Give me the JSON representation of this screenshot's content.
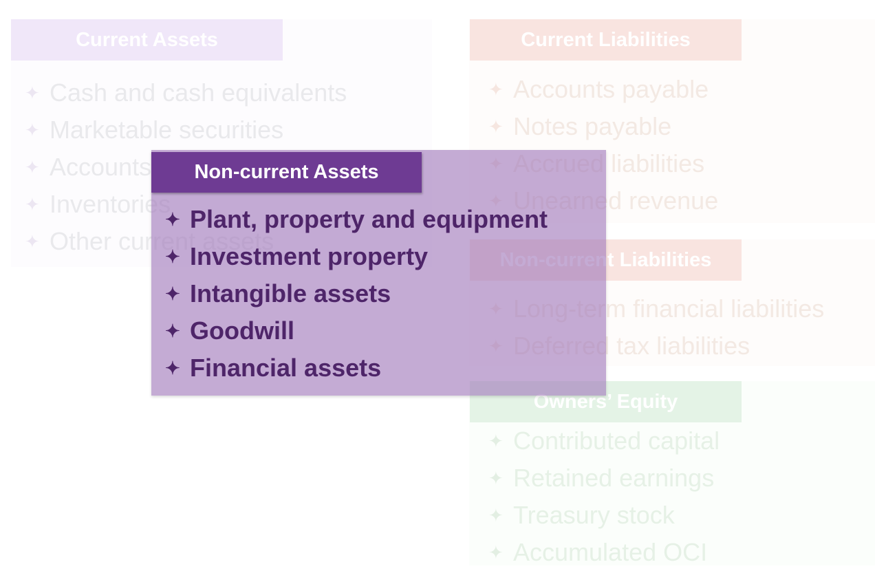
{
  "bullet_glyph": "✦",
  "sections": {
    "current_assets": {
      "title": "Current Assets",
      "items": [
        "Cash and cash equivalents",
        "Marketable securities",
        "Accounts receivable",
        "Inventories",
        "Other current assets"
      ]
    },
    "current_liabilities": {
      "title": "Current Liabilities",
      "items": [
        "Accounts payable",
        "Notes payable",
        "Accrued liabilities",
        "Unearned revenue"
      ]
    },
    "noncurrent_liabilities": {
      "title": "Non-current Liabilities",
      "items": [
        "Long-term financial liabilities",
        "Deferred tax liabilities"
      ]
    },
    "owners_equity": {
      "title": "Owners’ Equity",
      "items": [
        "Contributed capital",
        "Retained earnings",
        "Treasury stock",
        "Accumulated OCI"
      ]
    },
    "noncurrent_assets": {
      "title": "Non-current Assets",
      "items": [
        "Plant, property and equipment",
        "Investment property",
        "Intangible assets",
        "Goodwill",
        "Financial assets"
      ]
    }
  },
  "colors": {
    "highlight_header": "#6e3b93",
    "highlight_text": "#4e2569",
    "highlight_panel": "#a078b9"
  }
}
